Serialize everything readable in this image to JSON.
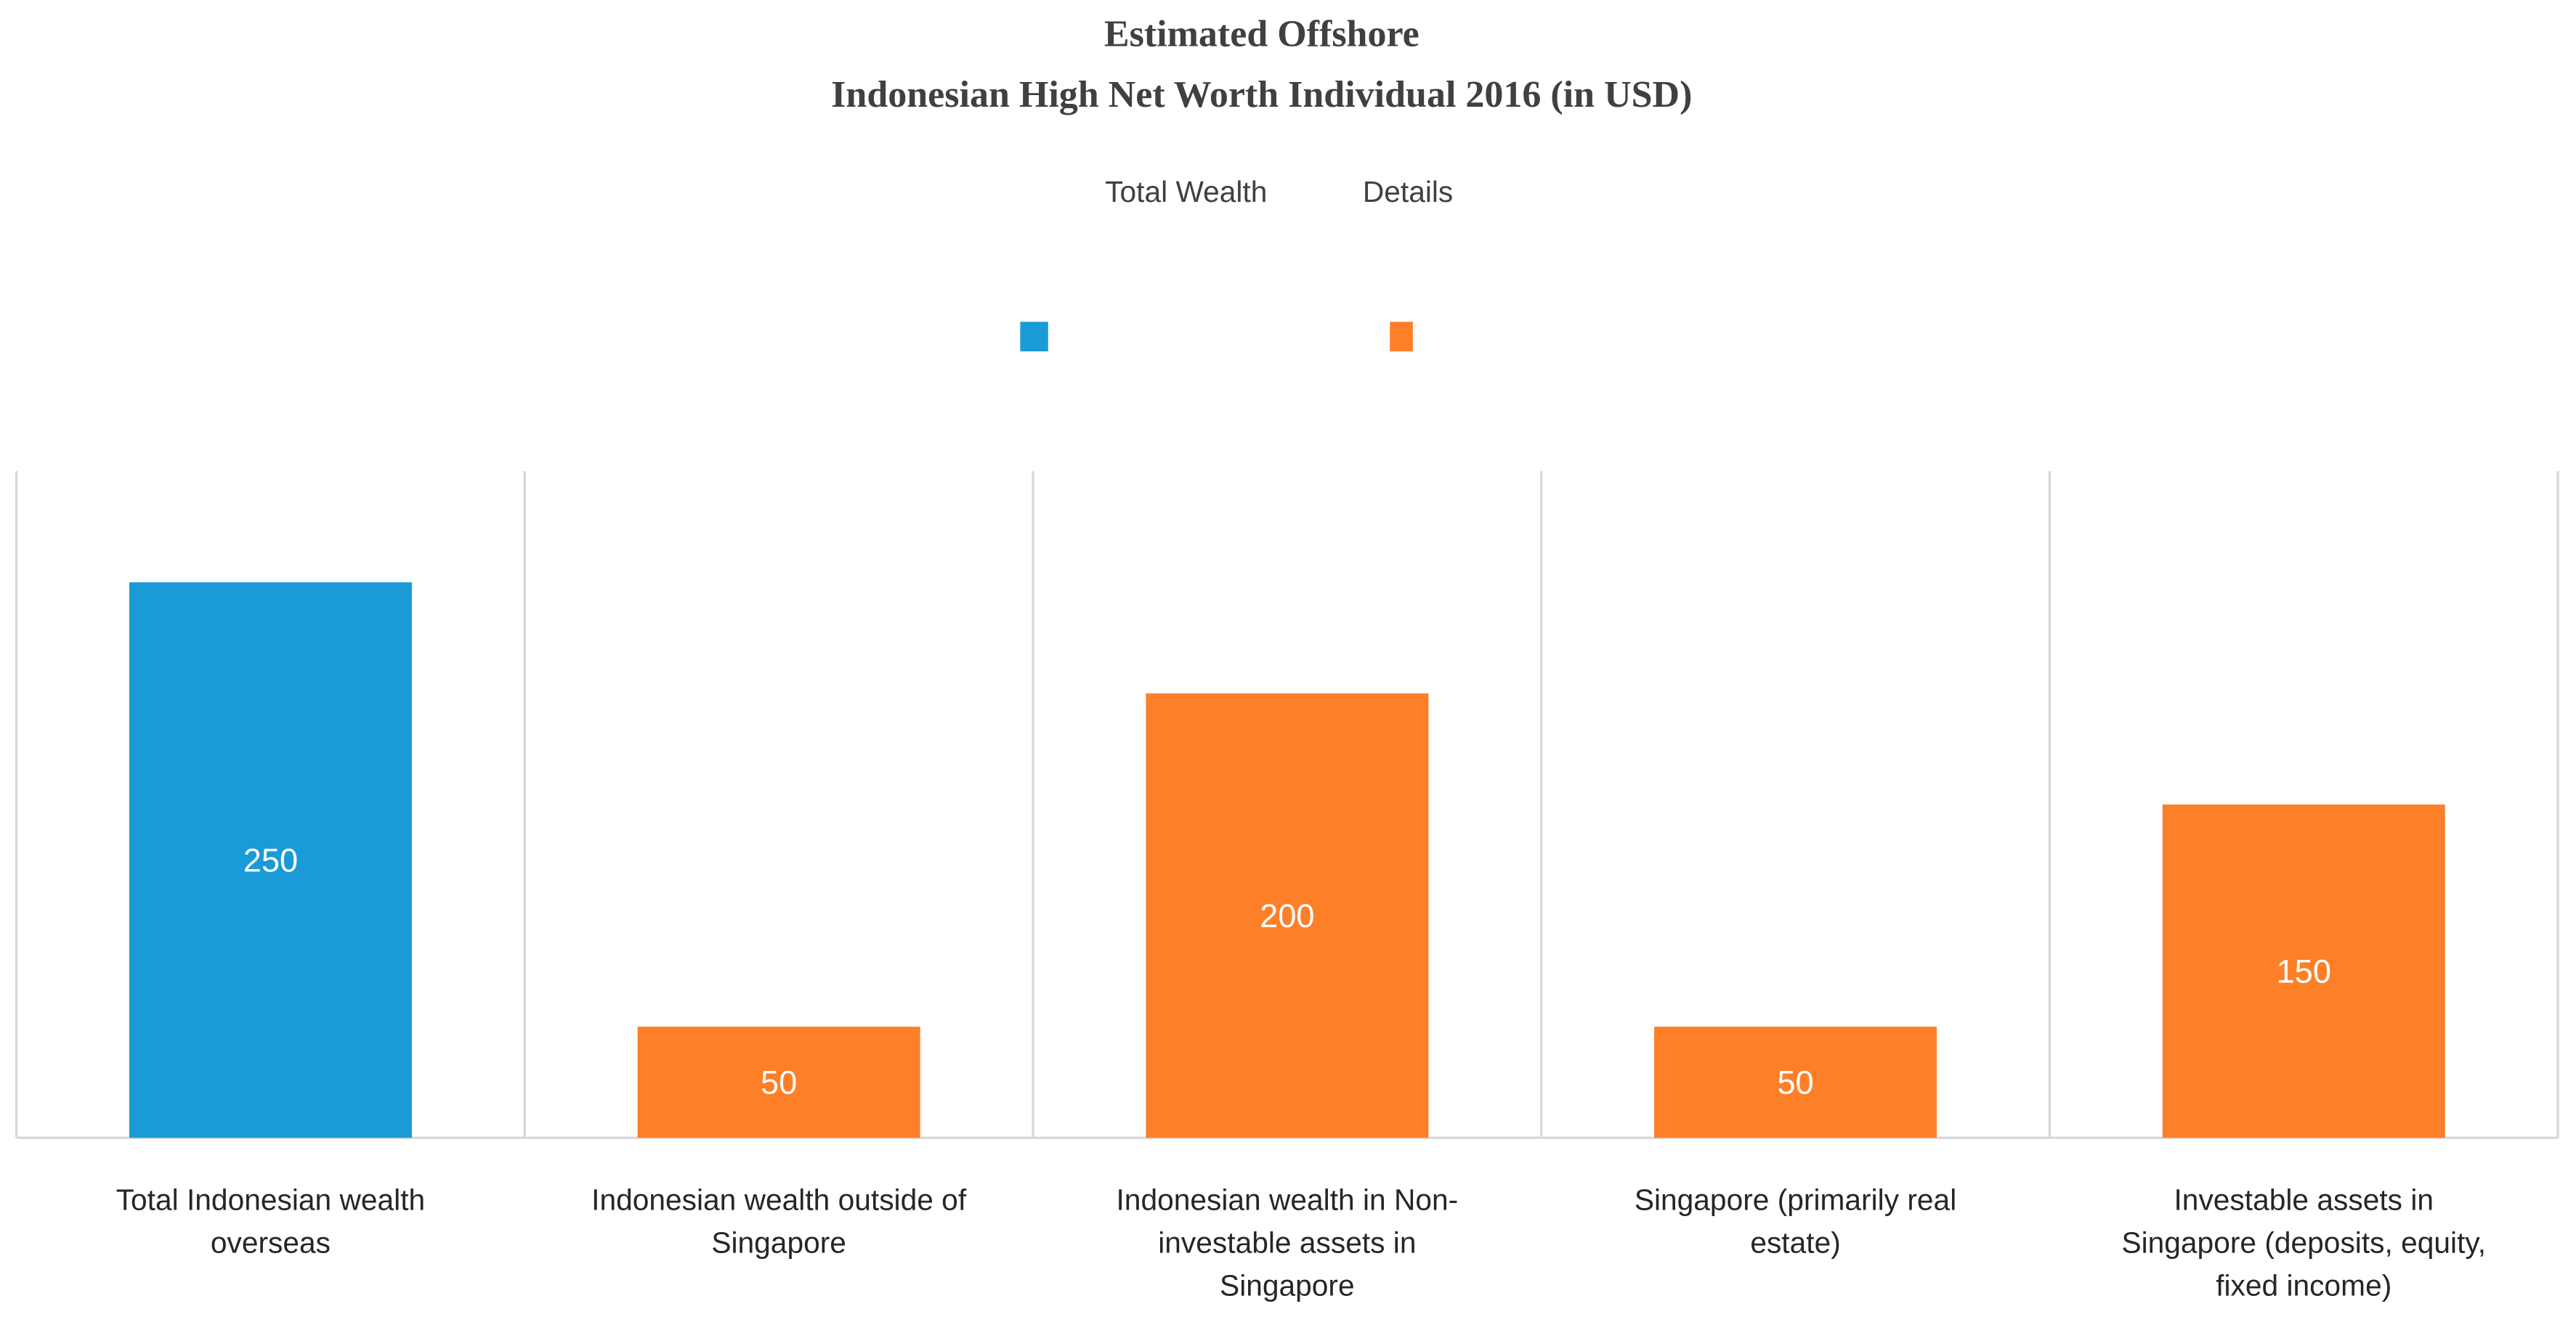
{
  "chart_data": {
    "type": "bar",
    "title": [
      "Estimated Offshore",
      "Indonesian High Net Worth Individual 2016 (in USD)"
    ],
    "categories": [
      "Total Indonesian wealth overseas",
      "Indonesian wealth outside of Singapore",
      "Indonesian wealth in Non-investable assets in Singapore",
      "Singapore (primarily real estate)",
      "Investable assets in Singapore (deposits, equity, fixed income)"
    ],
    "series": [
      {
        "name": "Total Wealth",
        "color": "#1a9bd7",
        "values": [
          250,
          null,
          null,
          null,
          null
        ]
      },
      {
        "name": "Details",
        "color": "#fd7f28",
        "values": [
          null,
          50,
          200,
          50,
          150
        ]
      }
    ],
    "ylim": [
      0,
      300
    ]
  }
}
